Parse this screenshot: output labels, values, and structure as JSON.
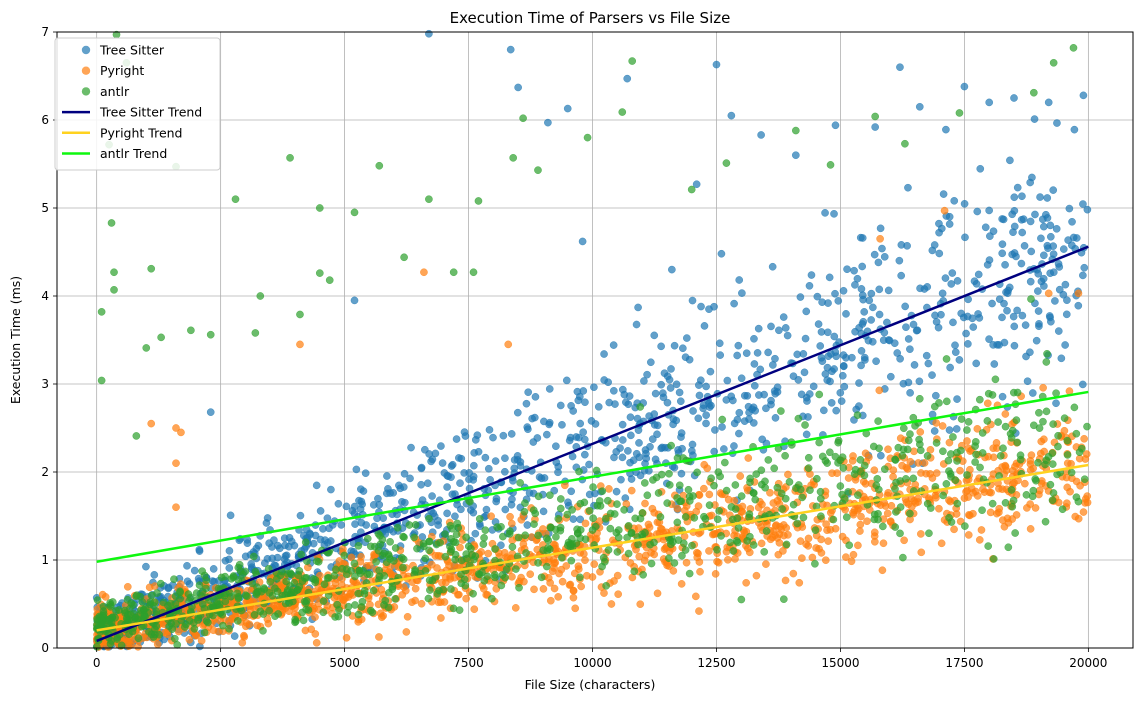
{
  "chart_data": {
    "type": "scatter",
    "title": "Execution Time of Parsers vs File Size",
    "xlabel": "File Size (characters)",
    "ylabel": "Execution Time (ms)",
    "xlim": [
      -800,
      20900
    ],
    "ylim": [
      0,
      7
    ],
    "xticks": [
      0,
      2500,
      5000,
      7500,
      10000,
      12500,
      15000,
      17500,
      20000
    ],
    "yticks": [
      0,
      1,
      2,
      3,
      4,
      5,
      6,
      7
    ],
    "grid": true,
    "legend_position": "top-left",
    "series": [
      {
        "name": "Tree Sitter",
        "color": "#1f77b4",
        "trend": {
          "slope": 0.000224,
          "intercept": 0.08
        },
        "outliers": [
          [
            8350,
            6.8
          ],
          [
            8500,
            6.37
          ],
          [
            9100,
            5.97
          ],
          [
            9500,
            6.13
          ],
          [
            10700,
            6.47
          ],
          [
            12500,
            6.63
          ],
          [
            12800,
            6.05
          ],
          [
            13400,
            5.83
          ],
          [
            14100,
            5.6
          ],
          [
            14900,
            5.94
          ],
          [
            15700,
            5.92
          ],
          [
            16200,
            6.6
          ],
          [
            16600,
            6.15
          ],
          [
            17500,
            6.38
          ],
          [
            18000,
            6.2
          ],
          [
            18500,
            6.25
          ],
          [
            19200,
            6.2
          ],
          [
            19900,
            6.28
          ],
          [
            6700,
            6.98
          ],
          [
            5200,
            3.95
          ],
          [
            2300,
            2.68
          ],
          [
            9800,
            4.62
          ],
          [
            12100,
            5.27
          ],
          [
            11600,
            4.3
          ],
          [
            12600,
            4.48
          ]
        ]
      },
      {
        "name": "Pyright",
        "color": "#ff7f0e",
        "trend": {
          "slope": 9.4e-05,
          "intercept": 0.2
        },
        "outliers": [
          [
            4100,
            3.45
          ],
          [
            6600,
            4.27
          ],
          [
            1600,
            2.5
          ],
          [
            1700,
            2.45
          ],
          [
            1100,
            2.55
          ],
          [
            1600,
            2.1
          ],
          [
            15800,
            4.65
          ],
          [
            17100,
            4.97
          ],
          [
            19200,
            4.03
          ],
          [
            19800,
            4.03
          ],
          [
            8300,
            3.45
          ],
          [
            1600,
            1.6
          ]
        ]
      },
      {
        "name": "antlr",
        "color": "#2ca02c",
        "trend": {
          "slope": 9.65e-05,
          "intercept": 0.98
        },
        "outliers": [
          [
            400,
            6.97
          ],
          [
            600,
            6.65
          ],
          [
            250,
            5.72
          ],
          [
            1600,
            5.47
          ],
          [
            2800,
            5.1
          ],
          [
            3900,
            5.57
          ],
          [
            4500,
            5.0
          ],
          [
            5200,
            4.95
          ],
          [
            5700,
            5.48
          ],
          [
            6700,
            5.1
          ],
          [
            7700,
            5.08
          ],
          [
            8400,
            5.57
          ],
          [
            8600,
            6.02
          ],
          [
            8900,
            5.43
          ],
          [
            9900,
            5.8
          ],
          [
            10600,
            6.09
          ],
          [
            10800,
            6.67
          ],
          [
            12000,
            5.21
          ],
          [
            12700,
            5.51
          ],
          [
            14100,
            5.88
          ],
          [
            14800,
            5.49
          ],
          [
            15700,
            6.04
          ],
          [
            16300,
            5.73
          ],
          [
            17400,
            6.08
          ],
          [
            18900,
            6.31
          ],
          [
            19300,
            6.65
          ],
          [
            19700,
            6.82
          ],
          [
            100,
            3.82
          ],
          [
            300,
            4.83
          ],
          [
            350,
            4.07
          ],
          [
            350,
            4.27
          ],
          [
            1100,
            4.31
          ],
          [
            3200,
            3.58
          ],
          [
            3300,
            4.0
          ],
          [
            4100,
            3.79
          ],
          [
            4500,
            4.26
          ],
          [
            4700,
            4.18
          ],
          [
            6200,
            4.44
          ],
          [
            7200,
            4.27
          ],
          [
            7600,
            4.27
          ],
          [
            100,
            3.04
          ],
          [
            800,
            2.41
          ],
          [
            1000,
            3.41
          ],
          [
            1300,
            3.53
          ],
          [
            1900,
            3.61
          ],
          [
            2300,
            3.56
          ]
        ]
      }
    ]
  }
}
